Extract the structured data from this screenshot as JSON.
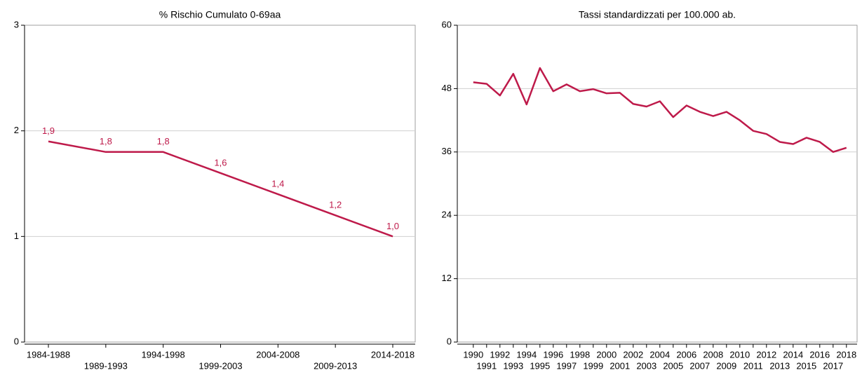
{
  "chart_data": [
    {
      "type": "line",
      "title": "% Rischio Cumulato 0-69aa",
      "categories": [
        "1984-1988",
        "1989-1993",
        "1994-1998",
        "1999-2003",
        "2004-2008",
        "2009-2013",
        "2014-2018"
      ],
      "series": [
        {
          "color": "#be1a4a",
          "values": [
            1.9,
            1.8,
            1.8,
            1.6,
            1.4,
            1.2,
            1.0
          ],
          "value_labels": [
            "1,9",
            "1,8",
            "1,8",
            "1,6",
            "1,4",
            "1,2",
            "1,0"
          ]
        }
      ],
      "ylim": [
        0,
        3
      ],
      "yticks": [
        0,
        1,
        2,
        3
      ],
      "grid": true
    },
    {
      "type": "line",
      "title": "Tassi standardizzati per 100.000 ab.",
      "x": [
        1990,
        1991,
        1992,
        1993,
        1994,
        1995,
        1996,
        1997,
        1998,
        1999,
        2000,
        2001,
        2002,
        2003,
        2004,
        2005,
        2006,
        2007,
        2008,
        2009,
        2010,
        2011,
        2012,
        2013,
        2014,
        2015,
        2016,
        2017,
        2018
      ],
      "series": [
        {
          "color": "#be1a4a",
          "values": [
            49.2,
            48.9,
            46.7,
            50.8,
            45.0,
            51.9,
            47.5,
            48.8,
            47.5,
            47.9,
            47.1,
            47.2,
            45.1,
            44.6,
            45.6,
            42.6,
            44.8,
            43.6,
            42.8,
            43.6,
            42.0,
            40.0,
            39.4,
            37.9,
            37.5,
            38.7,
            37.9,
            36.0,
            36.8
          ]
        }
      ],
      "xlim": [
        1988.8,
        2018.8
      ],
      "xticks": [
        1990,
        1991,
        1992,
        1993,
        1994,
        1995,
        1996,
        1997,
        1998,
        1999,
        2000,
        2001,
        2002,
        2003,
        2004,
        2005,
        2006,
        2007,
        2008,
        2009,
        2010,
        2011,
        2012,
        2013,
        2014,
        2015,
        2016,
        2017,
        2018
      ],
      "ylim": [
        0,
        60
      ],
      "yticks": [
        0,
        12,
        24,
        36,
        48,
        60
      ],
      "grid": true
    }
  ]
}
